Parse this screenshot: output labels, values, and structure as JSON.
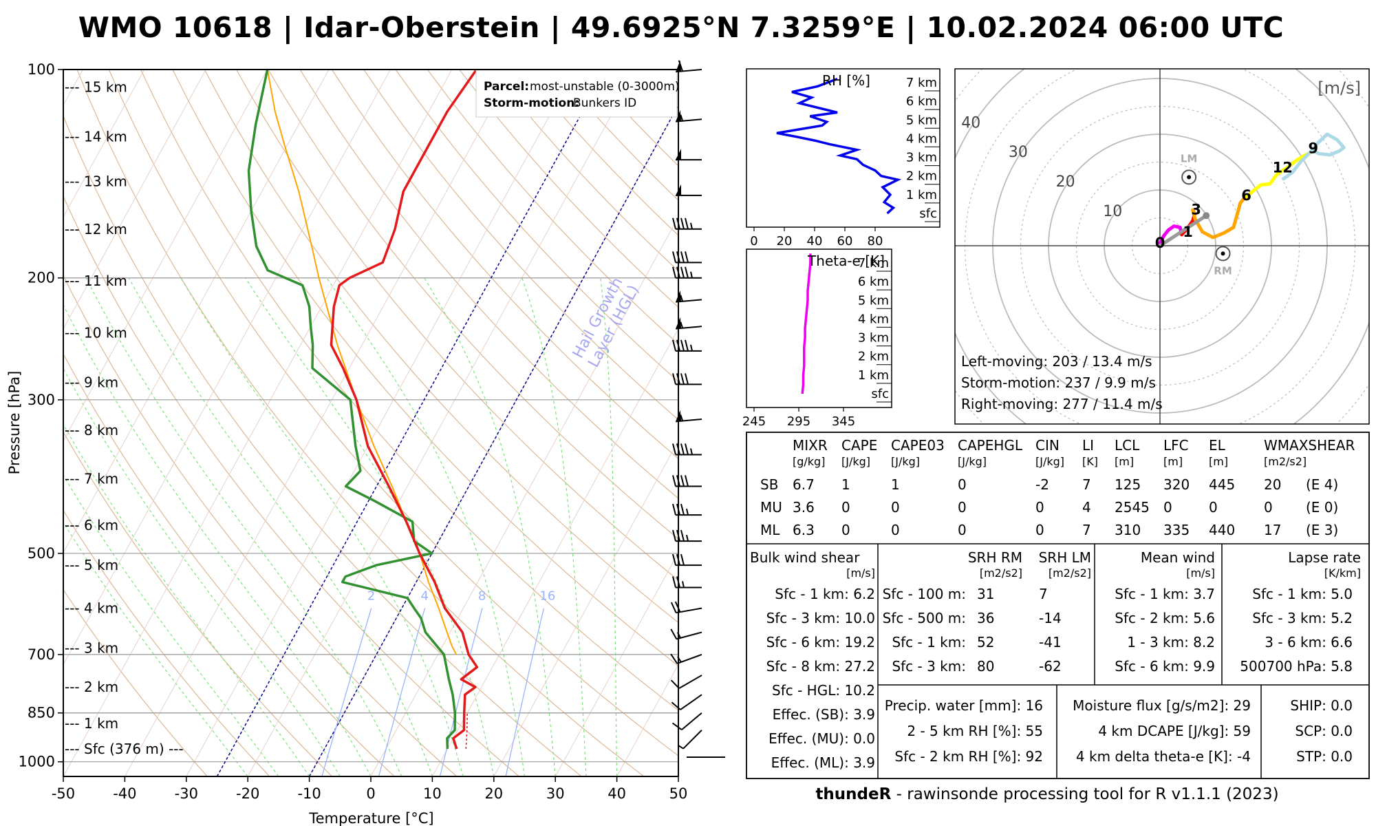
{
  "title": "WMO 10618 | Idar-Oberstein | 49.6925°N 7.3259°E | 10.02.2024 06:00 UTC",
  "footer": {
    "brand": "thundeR",
    "text": " - rawinsonde processing tool for R v1.1.1 (2023)"
  },
  "colors": {
    "temp": "#e31a1c",
    "dew": "#31902f",
    "parcel": "#ffa500",
    "mixr": "#99b3ff",
    "dry": "#d2a679",
    "moist": "#7ee07e",
    "rh": "#0000ee",
    "thetae": "#ee00ee"
  },
  "skewt": {
    "ylabel": "Pressure [hPa]",
    "xlabel": "Temperature [°C]",
    "xticks": [
      -50,
      -40,
      -30,
      -20,
      -10,
      0,
      10,
      20,
      30,
      40,
      50
    ],
    "pticks": [
      100,
      200,
      300,
      500,
      700,
      850,
      1000
    ],
    "heights": [
      {
        "label": "--- 15 km",
        "p": 106
      },
      {
        "label": "--- 14 km",
        "p": 125
      },
      {
        "label": "--- 13 km",
        "p": 145
      },
      {
        "label": "--- 12 km",
        "p": 170
      },
      {
        "label": "--- 11 km",
        "p": 202
      },
      {
        "label": "--- 10 km",
        "p": 240
      },
      {
        "label": "--- 9 km",
        "p": 283
      },
      {
        "label": "--- 8 km",
        "p": 332
      },
      {
        "label": "--- 7 km",
        "p": 390
      },
      {
        "label": "--- 6 km",
        "p": 455
      },
      {
        "label": "--- 5 km",
        "p": 520
      },
      {
        "label": "--- 4 km",
        "p": 600
      },
      {
        "label": "--- 3 km",
        "p": 685
      },
      {
        "label": "--- 2 km",
        "p": 780
      },
      {
        "label": "--- 1 km",
        "p": 880
      },
      {
        "label": "--- Sfc (376 m) ---",
        "p": 958
      }
    ],
    "legend": {
      "parcel_label": "Parcel:",
      "parcel_value": "most-unstable (0-3000m)",
      "motion_label": "Storm-motion:",
      "motion_value": "Bunkers ID"
    },
    "hgl_label": [
      "Hail Growth",
      "Layer (HGL)"
    ],
    "mixr_labels": [
      "2",
      "4",
      "8",
      "16"
    ],
    "temperature": [
      [
        958,
        11.5
      ],
      [
        925,
        10
      ],
      [
        900,
        11
      ],
      [
        850,
        9.5
      ],
      [
        800,
        8
      ],
      [
        780,
        9
      ],
      [
        760,
        6
      ],
      [
        730,
        7.5
      ],
      [
        700,
        5
      ],
      [
        650,
        2
      ],
      [
        600,
        -3
      ],
      [
        550,
        -7
      ],
      [
        500,
        -12
      ],
      [
        450,
        -17
      ],
      [
        400,
        -23
      ],
      [
        350,
        -30
      ],
      [
        300,
        -36
      ],
      [
        270,
        -41
      ],
      [
        250,
        -45
      ],
      [
        220,
        -48
      ],
      [
        205,
        -49
      ],
      [
        200,
        -48
      ],
      [
        190,
        -44
      ],
      [
        170,
        -45
      ],
      [
        150,
        -47
      ],
      [
        130,
        -47
      ],
      [
        115,
        -47
      ],
      [
        100,
        -46
      ]
    ],
    "dewpoint": [
      [
        958,
        10
      ],
      [
        925,
        9
      ],
      [
        900,
        9.5
      ],
      [
        850,
        8
      ],
      [
        800,
        6
      ],
      [
        760,
        4
      ],
      [
        700,
        1
      ],
      [
        650,
        -4
      ],
      [
        620,
        -6
      ],
      [
        600,
        -8
      ],
      [
        580,
        -10
      ],
      [
        550,
        -22
      ],
      [
        540,
        -22
      ],
      [
        520,
        -18
      ],
      [
        500,
        -10
      ],
      [
        480,
        -14
      ],
      [
        450,
        -16
      ],
      [
        420,
        -24
      ],
      [
        400,
        -30
      ],
      [
        380,
        -29
      ],
      [
        350,
        -32
      ],
      [
        300,
        -37
      ],
      [
        270,
        -46
      ],
      [
        250,
        -48
      ],
      [
        235,
        -50
      ],
      [
        220,
        -52
      ],
      [
        205,
        -55
      ],
      [
        195,
        -62
      ],
      [
        180,
        -66
      ],
      [
        160,
        -70
      ],
      [
        140,
        -74
      ],
      [
        120,
        -77
      ],
      [
        100,
        -80
      ]
    ],
    "parcel": [
      [
        700,
        3
      ],
      [
        680,
        1.5
      ],
      [
        650,
        -0.5
      ],
      [
        600,
        -4
      ],
      [
        550,
        -8
      ],
      [
        500,
        -12
      ],
      [
        450,
        -17
      ],
      [
        400,
        -22.5
      ],
      [
        350,
        -29
      ],
      [
        300,
        -36
      ],
      [
        250,
        -44
      ],
      [
        200,
        -53
      ],
      [
        180,
        -57
      ],
      [
        150,
        -64
      ],
      [
        130,
        -70
      ],
      [
        115,
        -75
      ],
      [
        100,
        -80
      ]
    ],
    "barbs": [
      {
        "p": 100,
        "spd": 60,
        "dir": 265
      },
      {
        "p": 118,
        "spd": 55,
        "dir": 265
      },
      {
        "p": 135,
        "spd": 50,
        "dir": 270
      },
      {
        "p": 152,
        "spd": 50,
        "dir": 270
      },
      {
        "p": 170,
        "spd": 45,
        "dir": 270
      },
      {
        "p": 190,
        "spd": 40,
        "dir": 270
      },
      {
        "p": 200,
        "spd": 45,
        "dir": 270
      },
      {
        "p": 215,
        "spd": 55,
        "dir": 265
      },
      {
        "p": 235,
        "spd": 55,
        "dir": 265
      },
      {
        "p": 255,
        "spd": 45,
        "dir": 270
      },
      {
        "p": 285,
        "spd": 40,
        "dir": 270
      },
      {
        "p": 320,
        "spd": 55,
        "dir": 265
      },
      {
        "p": 360,
        "spd": 45,
        "dir": 270
      },
      {
        "p": 400,
        "spd": 40,
        "dir": 270
      },
      {
        "p": 440,
        "spd": 35,
        "dir": 270
      },
      {
        "p": 480,
        "spd": 35,
        "dir": 270
      },
      {
        "p": 520,
        "spd": 30,
        "dir": 270
      },
      {
        "p": 560,
        "spd": 25,
        "dir": 270
      },
      {
        "p": 600,
        "spd": 20,
        "dir": 260
      },
      {
        "p": 650,
        "spd": 15,
        "dir": 255
      },
      {
        "p": 700,
        "spd": 15,
        "dir": 250
      },
      {
        "p": 750,
        "spd": 12,
        "dir": 240
      },
      {
        "p": 800,
        "spd": 10,
        "dir": 235
      },
      {
        "p": 850,
        "spd": 10,
        "dir": 230
      },
      {
        "p": 900,
        "spd": 5,
        "dir": 225
      },
      {
        "p": 958,
        "spd": 0,
        "dir": 135
      }
    ]
  },
  "rh_panel": {
    "title": "RH [%]",
    "xticks": [
      "0",
      "20",
      "40",
      "60",
      "80"
    ],
    "levels": [
      "sfc",
      "1 km",
      "2 km",
      "3 km",
      "4 km",
      "5 km",
      "6 km",
      "7 km"
    ],
    "profile": [
      [
        0,
        88
      ],
      [
        0.3,
        92
      ],
      [
        0.6,
        86
      ],
      [
        1.0,
        90
      ],
      [
        1.4,
        85
      ],
      [
        1.8,
        95
      ],
      [
        2.0,
        84
      ],
      [
        2.3,
        80
      ],
      [
        2.6,
        72
      ],
      [
        2.9,
        68
      ],
      [
        3.1,
        57
      ],
      [
        3.4,
        68
      ],
      [
        3.7,
        50
      ],
      [
        3.9,
        40
      ],
      [
        4.1,
        28
      ],
      [
        4.3,
        15
      ],
      [
        4.5,
        30
      ],
      [
        4.7,
        45
      ],
      [
        4.9,
        48
      ],
      [
        5.2,
        37
      ],
      [
        5.4,
        55
      ],
      [
        5.6,
        45
      ],
      [
        5.9,
        30
      ],
      [
        6.2,
        38
      ],
      [
        6.5,
        25
      ],
      [
        6.8,
        42
      ],
      [
        7.2,
        55
      ]
    ]
  },
  "thetae_panel": {
    "title": "Theta-e [K]",
    "xticks": [
      "245",
      "295",
      "345"
    ],
    "levels": [
      "sfc",
      "1 km",
      "2 km",
      "3 km",
      "4 km",
      "5 km",
      "6 km",
      "7 km"
    ],
    "profile": [
      [
        0,
        299
      ],
      [
        0.5,
        300
      ],
      [
        1,
        300
      ],
      [
        1.5,
        301
      ],
      [
        2,
        301
      ],
      [
        2.5,
        301
      ],
      [
        3,
        302
      ],
      [
        3.5,
        302
      ],
      [
        4,
        303
      ],
      [
        4.5,
        304
      ],
      [
        5,
        305
      ],
      [
        5.5,
        305
      ],
      [
        6,
        306
      ],
      [
        6.5,
        307
      ],
      [
        7,
        308
      ],
      [
        7.5,
        308
      ]
    ]
  },
  "hodograph": {
    "unit": "[m/s]",
    "ring_labels": [
      "10",
      "20",
      "30",
      "40"
    ],
    "text": [
      "Left-moving: 203 / 13.4 m/s",
      "Storm-motion: 237 / 9.9 m/s",
      "Right-moving: 277 / 11.4 m/s"
    ],
    "points": {
      "LM": [
        5.2,
        12.3
      ],
      "RM": [
        11.3,
        -1.4
      ],
      "MEAN": [
        8.3,
        5.4
      ]
    },
    "marker_labels": [
      {
        "t": "0",
        "u": 0,
        "v": 0.5
      },
      {
        "t": "1",
        "u": 5,
        "v": 2.5
      },
      {
        "t": "3",
        "u": 6.5,
        "v": 6.5
      },
      {
        "t": "6",
        "u": 15.5,
        "v": 9
      },
      {
        "t": "12",
        "u": 22,
        "v": 14
      },
      {
        "t": "9",
        "u": 27.5,
        "v": 17.5
      }
    ],
    "segments": [
      {
        "color": "#ee00ee",
        "pts": [
          [
            0,
            0.5
          ],
          [
            0.7,
            1.8
          ],
          [
            1.5,
            2.8
          ],
          [
            2.5,
            3.5
          ],
          [
            3.6,
            3.3
          ],
          [
            3.9,
            2.0
          ]
        ]
      },
      {
        "color": "#ff0000",
        "pts": [
          [
            3.9,
            2.0
          ],
          [
            5.0,
            3.2
          ],
          [
            5.9,
            4.5
          ],
          [
            6.2,
            5.6
          ],
          [
            5.9,
            6.4
          ]
        ]
      },
      {
        "color": "#ffa500",
        "pts": [
          [
            5.9,
            6.4
          ],
          [
            6.3,
            4.8
          ],
          [
            7.6,
            2.5
          ],
          [
            9.5,
            1.5
          ],
          [
            11.5,
            2.3
          ],
          [
            13.2,
            3.3
          ],
          [
            14.0,
            6.1
          ],
          [
            14.4,
            7.6
          ],
          [
            15.0,
            8.4
          ],
          [
            15.6,
            8.8
          ]
        ]
      },
      {
        "color": "#ffff00",
        "pts": [
          [
            15.6,
            8.8
          ],
          [
            16.8,
            9.9
          ],
          [
            18.1,
            10.9
          ],
          [
            19.7,
            11.1
          ],
          [
            21.0,
            12.8
          ],
          [
            22.8,
            14.0
          ],
          [
            24.6,
            15.4
          ],
          [
            26.0,
            16.2
          ],
          [
            27.5,
            17.0
          ]
        ]
      },
      {
        "color": "#add8e6",
        "pts": [
          [
            27.5,
            17.0
          ],
          [
            28.6,
            16.5
          ],
          [
            30.5,
            16.3
          ],
          [
            32.2,
            17.0
          ],
          [
            33.0,
            17.6
          ],
          [
            31.8,
            19.0
          ],
          [
            30.0,
            20.0
          ],
          [
            28.4,
            18.5
          ],
          [
            27.0,
            16.8
          ],
          [
            25.2,
            15.0
          ],
          [
            23.8,
            13.2
          ],
          [
            22.2,
            12.0
          ]
        ]
      }
    ]
  },
  "params": {
    "headers": [
      [
        "MIXR",
        "[g/kg]"
      ],
      [
        "CAPE",
        "[J/kg]"
      ],
      [
        "CAPE03",
        "[J/kg]"
      ],
      [
        "CAPEHGL",
        "[J/kg]"
      ],
      [
        "CIN",
        "[J/kg]"
      ],
      [
        "LI",
        "[K]"
      ],
      [
        "LCL",
        "[m]"
      ],
      [
        "LFC",
        "[m]"
      ],
      [
        "EL",
        "[m]"
      ],
      [
        "WMAXSHEAR",
        "[m2/s2]"
      ]
    ],
    "rows": [
      {
        "label": "SB",
        "values": [
          "6.7",
          "1",
          "1",
          "0",
          "-2",
          "7",
          "125",
          "320",
          "445",
          "20",
          "(E 4)"
        ]
      },
      {
        "label": "MU",
        "values": [
          "3.6",
          "0",
          "0",
          "0",
          "0",
          "4",
          "2545",
          "0",
          "0",
          "0",
          "(E 0)"
        ]
      },
      {
        "label": "ML",
        "values": [
          "6.3",
          "0",
          "0",
          "0",
          "0",
          "7",
          "310",
          "335",
          "440",
          "17",
          "(E 3)"
        ]
      }
    ]
  },
  "shear": {
    "title": "Bulk wind shear",
    "unit": "[m/s]",
    "rows": [
      "Sfc - 1 km: 6.2",
      "Sfc - 3 km: 10.0",
      "Sfc - 6 km: 19.2",
      "Sfc - 8 km: 27.2",
      "Sfc - HGL: 10.2",
      "Effec. (SB): 3.9",
      "Effec. (MU): 0.0",
      "Effec. (ML): 3.9"
    ]
  },
  "srh": {
    "title_rm": "SRH RM",
    "unit_rm": "[m2/s2]",
    "title_lm": "SRH LM",
    "unit_lm": "[m2/s2]",
    "rows": [
      {
        "label": "Sfc - 100 m:",
        "rm": "31",
        "lm": "7"
      },
      {
        "label": "Sfc - 500 m:",
        "rm": "36",
        "lm": "-14"
      },
      {
        "label": "Sfc - 1 km:",
        "rm": "52",
        "lm": "-41"
      },
      {
        "label": "Sfc - 3 km:",
        "rm": "80",
        "lm": "-62"
      }
    ]
  },
  "meanwind": {
    "title": "Mean wind",
    "unit": "[m/s]",
    "rows": [
      "Sfc - 1 km: 3.7",
      "Sfc - 2 km: 5.6",
      "1 - 3 km: 8.2",
      "Sfc - 6 km: 9.9"
    ]
  },
  "lapse": {
    "title": "Lapse rate",
    "unit": "[K/km]",
    "rows": [
      "Sfc - 1 km: 5.0",
      "Sfc - 3 km: 5.2",
      "3 - 6 km: 6.6",
      "500700 hPa: 5.8"
    ]
  },
  "moisture": {
    "rows": [
      "Precip. water [mm]: 16",
      "2 - 5 km RH [%]: 55",
      "Sfc - 2 km RH [%]: 92"
    ]
  },
  "flux": {
    "rows": [
      "Moisture flux [g/s/m2]: 29",
      "4 km DCAPE [J/kg]: 59",
      "4 km delta theta-e [K]: -4"
    ]
  },
  "composite": {
    "rows": [
      "SHIP: 0.0",
      "SCP: 0.0",
      "STP: 0.0"
    ]
  }
}
